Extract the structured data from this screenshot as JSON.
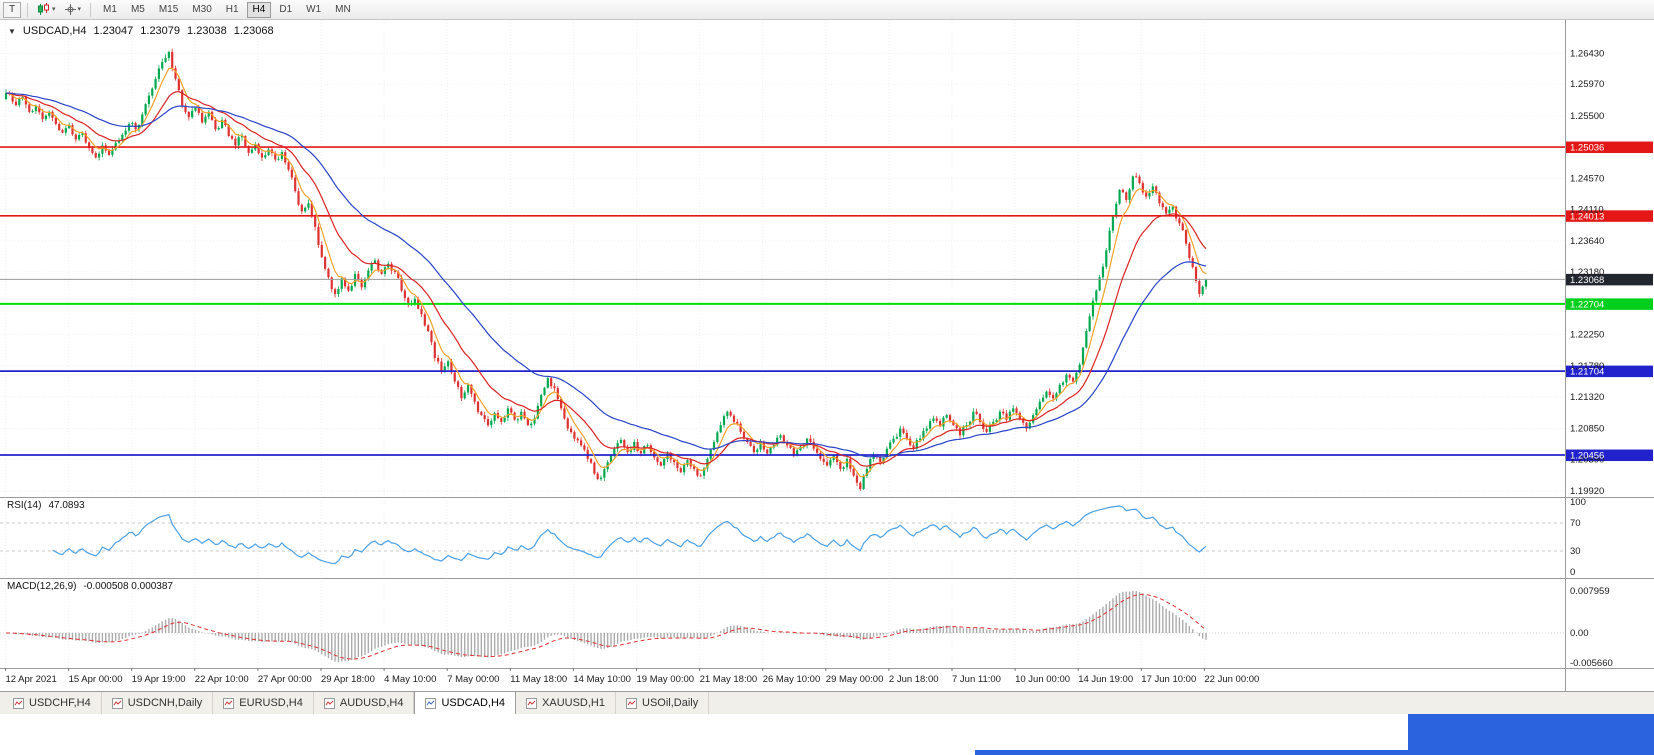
{
  "toolbar": {
    "handle_label": "T",
    "periods": [
      "M1",
      "M5",
      "M15",
      "M30",
      "H1",
      "H4",
      "D1",
      "W1",
      "MN"
    ],
    "active_period": "H4"
  },
  "chart_header": {
    "symbol": "USDCAD,H4",
    "open": "1.23047",
    "high": "1.23079",
    "low": "1.23038",
    "close": "1.23068"
  },
  "price_axis": {
    "ticks": [
      "1.26430",
      "1.25970",
      "1.25500",
      "1.24570",
      "1.24110",
      "1.23640",
      "1.23180",
      "1.22250",
      "1.21780",
      "1.21320",
      "1.20850",
      "1.20390",
      "1.19920"
    ],
    "badges": [
      {
        "value": "1.25036",
        "price": 1.25036,
        "color": "#e41717",
        "text": "#ffffff"
      },
      {
        "value": "1.24013",
        "price": 1.24013,
        "color": "#e41717",
        "text": "#ffffff"
      },
      {
        "value": "1.23068",
        "price": 1.23068,
        "color": "#22262e",
        "text": "#ffffff"
      },
      {
        "value": "1.22704",
        "price": 1.22704,
        "color": "#00cf1d",
        "text": "#ffffff"
      },
      {
        "value": "1.21704",
        "price": 1.21704,
        "color": "#2222cc",
        "text": "#ffffff"
      },
      {
        "value": "1.20456",
        "price": 1.20456,
        "color": "#2222cc",
        "text": "#ffffff"
      }
    ]
  },
  "rsi_panel": {
    "label": "RSI(14)",
    "value": "47.0893",
    "axis": [
      "100",
      "70",
      "30",
      "0"
    ],
    "upper_level": 70,
    "lower_level": 30
  },
  "macd_panel": {
    "label": "MACD(12,26,9)",
    "values": "-0.000508 0.000387",
    "axis": [
      "0.007959",
      "0.00",
      "-0.005660"
    ]
  },
  "tabs": {
    "items": [
      {
        "label": "USDCHF,H4"
      },
      {
        "label": "USDCNH,Daily"
      },
      {
        "label": "EURUSD,H4"
      },
      {
        "label": "AUDUSD,H4"
      },
      {
        "label": "USDCAD,H4"
      },
      {
        "label": "XAUUSD,H1"
      },
      {
        "label": "USOil,Daily"
      }
    ],
    "active": "USDCAD,H4"
  },
  "colors": {
    "candle_up": "#00a94f",
    "candle_down": "#e03131",
    "ma_fast": "#f2a129",
    "ma_mid": "#dd2222",
    "ma_slow": "#2743c9",
    "current_line": "#9a9a9a",
    "rsi": "#4aa0e8",
    "macd_hist": "#ababab",
    "macd_signal": "#e03131",
    "grid": "#efefef",
    "axis_text": "#1a1a1a",
    "separator": "#9a9a9a"
  },
  "chart_data": {
    "type": "candlestick",
    "symbol": "USDCAD",
    "timeframe": "H4",
    "title": "USDCAD,H4",
    "y_range": [
      1.1983,
      1.2692
    ],
    "current_price": 1.23068,
    "horizontal_lines": [
      {
        "price": 1.25036,
        "color": "#e41717",
        "width": 1.6
      },
      {
        "price": 1.24013,
        "color": "#e41717",
        "width": 1.6
      },
      {
        "price": 1.22704,
        "color": "#00e000",
        "width": 2
      },
      {
        "price": 1.21704,
        "color": "#2222cc",
        "width": 1.8
      },
      {
        "price": 1.20456,
        "color": "#2222cc",
        "width": 1.8
      }
    ],
    "series": [
      {
        "name": "MA fast",
        "color": "#f2a129",
        "period": 6
      },
      {
        "name": "MA mid",
        "color": "#dd2222",
        "period": 18
      },
      {
        "name": "MA slow",
        "color": "#2743c9",
        "period": 44
      }
    ],
    "indicators": [
      {
        "name": "RSI",
        "period": 14,
        "last": 47.0893
      },
      {
        "name": "MACD",
        "params": [
          12,
          26,
          9
        ],
        "last_main": -0.000508,
        "last_signal": 0.000387
      }
    ],
    "x_labels": [
      "12 Apr 2021",
      "15 Apr 00:00",
      "19 Apr 19:00",
      "22 Apr 10:00",
      "27 Apr 00:00",
      "29 Apr 18:00",
      "4 May 10:00",
      "7 May 00:00",
      "11 May 18:00",
      "14 May 10:00",
      "19 May 00:00",
      "21 May 18:00",
      "26 May 10:00",
      "29 May 00:00",
      "2 Jun 18:00",
      "7 Jun 11:00",
      "10 Jun 00:00",
      "14 Jun 19:00",
      "17 Jun 10:00",
      "22 Jun 00:00"
    ],
    "closes": [
      1.2575,
      1.2582,
      1.2566,
      1.2578,
      1.2556,
      1.2564,
      1.2545,
      1.2556,
      1.2538,
      1.2525,
      1.2536,
      1.2515,
      1.2524,
      1.2502,
      1.2488,
      1.2506,
      1.2492,
      1.251,
      1.2522,
      1.2538,
      1.253,
      1.2552,
      1.258,
      1.2605,
      1.263,
      1.2645,
      1.2605,
      1.2565,
      1.2548,
      1.2562,
      1.254,
      1.2556,
      1.253,
      1.2544,
      1.252,
      1.2506,
      1.252,
      1.2495,
      1.2508,
      1.2488,
      1.25,
      1.2485,
      1.2496,
      1.247,
      1.2438,
      1.2408,
      1.242,
      1.2385,
      1.234,
      1.231,
      1.2285,
      1.2308,
      1.229,
      1.2315,
      1.2295,
      1.232,
      1.2335,
      1.2315,
      1.233,
      1.2318,
      1.229,
      1.227,
      1.2278,
      1.2255,
      1.223,
      1.219,
      1.217,
      1.2185,
      1.2155,
      1.213,
      1.215,
      1.2125,
      1.2105,
      1.209,
      1.2108,
      1.2095,
      1.2115,
      1.2098,
      1.211,
      1.209,
      1.21,
      1.2135,
      1.216,
      1.2145,
      1.2115,
      1.2085,
      1.207,
      1.206,
      1.204,
      1.2018,
      1.2012,
      1.2035,
      1.2055,
      1.2068,
      1.205,
      1.2065,
      1.2048,
      1.206,
      1.2042,
      1.203,
      1.2048,
      1.2035,
      1.202,
      1.2038,
      1.2025,
      1.2015,
      1.204,
      1.2065,
      1.209,
      1.211,
      1.2095,
      1.208,
      1.2065,
      1.205,
      1.2065,
      1.2048,
      1.206,
      1.2075,
      1.206,
      1.2045,
      1.2058,
      1.207,
      1.2055,
      1.204,
      1.203,
      1.2045,
      1.2025,
      1.204,
      1.2015,
      1.1995,
      1.2025,
      1.2045,
      1.2035,
      1.2055,
      1.207,
      1.2085,
      1.207,
      1.2055,
      1.207,
      1.2085,
      1.21,
      1.2088,
      1.2105,
      1.209,
      1.2075,
      1.209,
      1.211,
      1.2095,
      1.208,
      1.2095,
      1.211,
      1.2098,
      1.2115,
      1.21,
      1.2085,
      1.2105,
      1.2125,
      1.214,
      1.213,
      1.215,
      1.2165,
      1.2155,
      1.218,
      1.223,
      1.2275,
      1.231,
      1.235,
      1.24,
      1.244,
      1.2425,
      1.246,
      1.245,
      1.243,
      1.2445,
      1.242,
      1.2405,
      1.2415,
      1.239,
      1.236,
      1.2325,
      1.2285,
      1.23068
    ]
  }
}
